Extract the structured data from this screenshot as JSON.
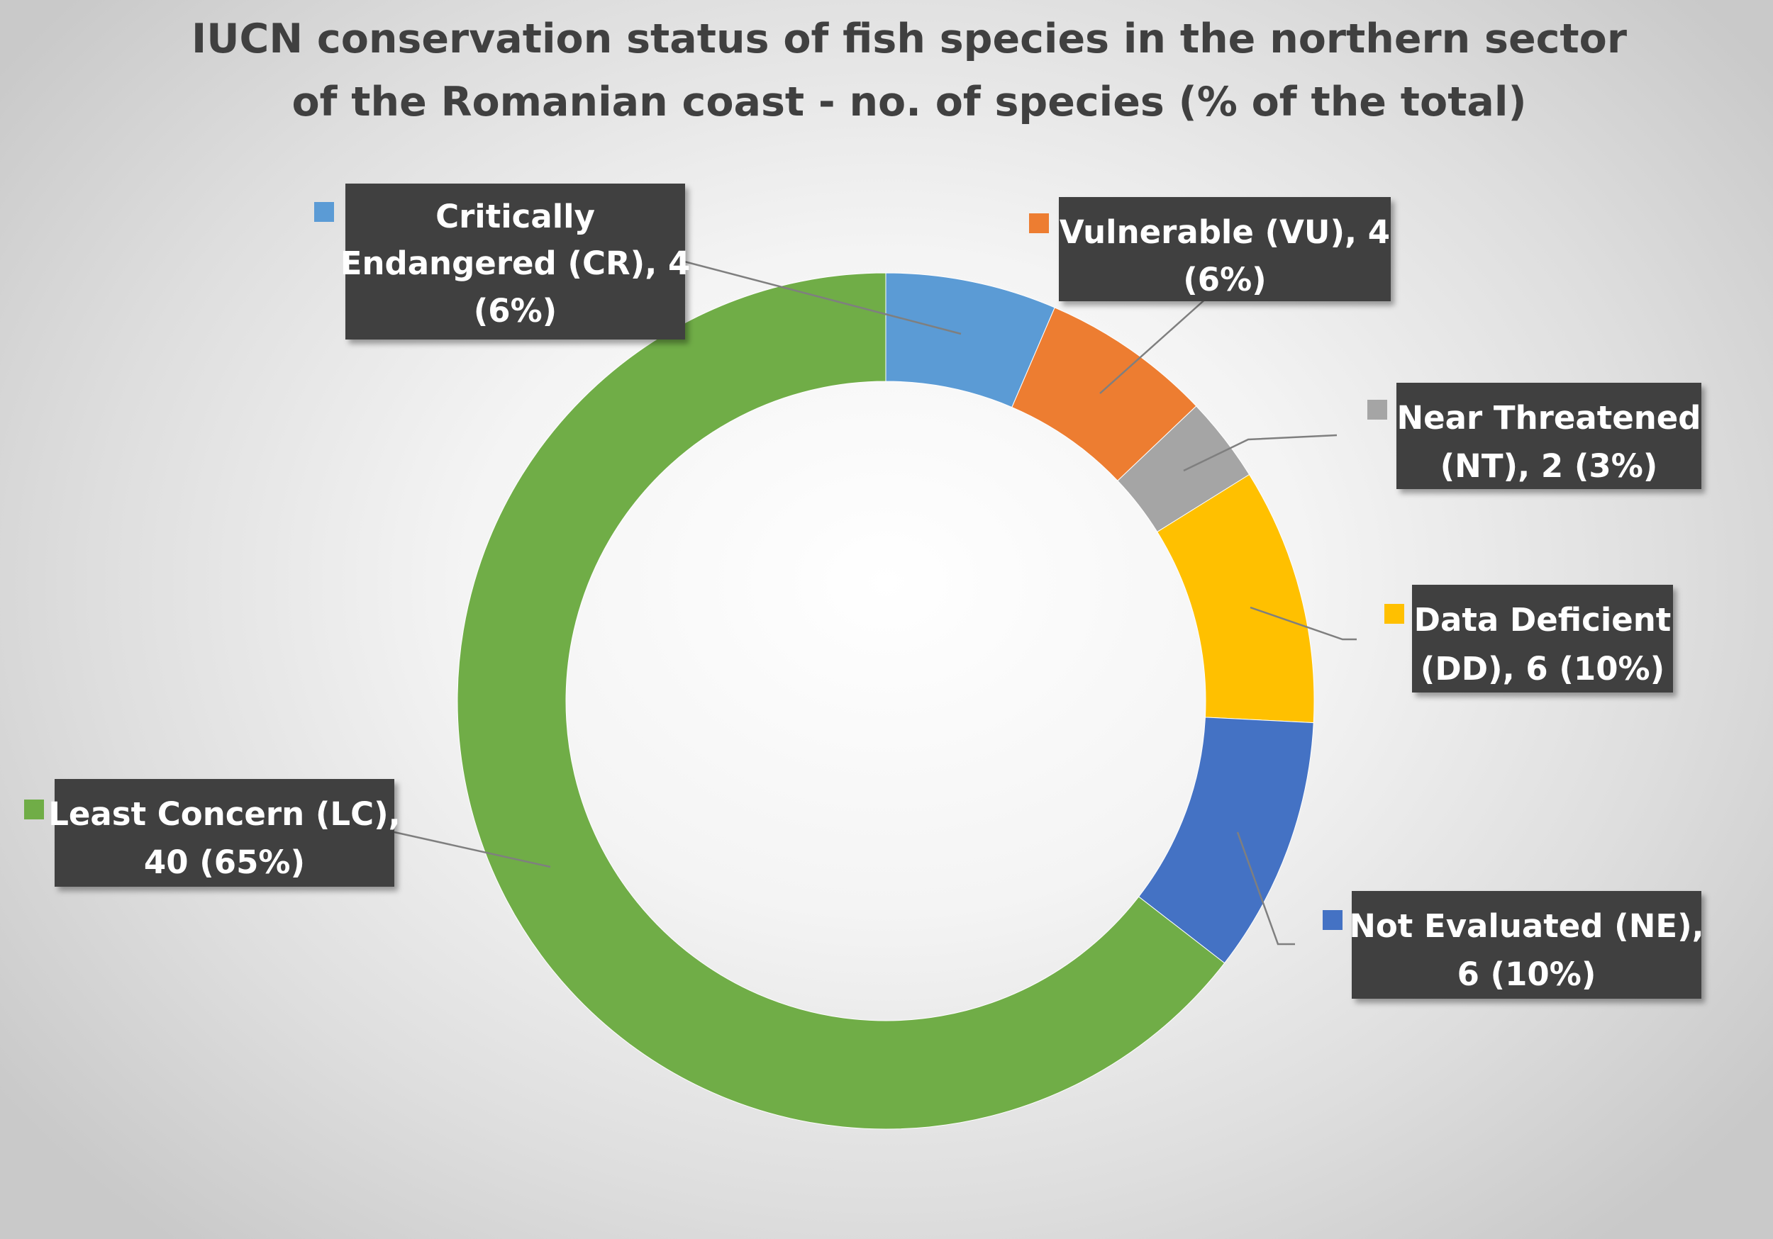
{
  "chart_data": {
    "type": "pie",
    "variant": "doughnut",
    "title_lines": [
      "IUCN conservation status of fish species in the northern sector",
      "of the Romanian coast - no. of species (% of the total)"
    ],
    "label_background": "#404040",
    "slices": [
      {
        "name": "Critically Endangered (CR)",
        "value": 4,
        "percent_label": "6%",
        "color": "#5B9BD5",
        "label_lines": [
          "Critically",
          "Endangered (CR), 4",
          "(6%)"
        ]
      },
      {
        "name": "Vulnerable (VU)",
        "value": 4,
        "percent_label": "6%",
        "color": "#ED7D31",
        "label_lines": [
          "Vulnerable (VU), 4",
          "(6%)"
        ]
      },
      {
        "name": "Near Threatened (NT)",
        "value": 2,
        "percent_label": "3%",
        "color": "#A5A5A5",
        "label_lines": [
          "Near Threatened",
          "(NT), 2 (3%)"
        ]
      },
      {
        "name": "Data Deficient (DD)",
        "value": 6,
        "percent_label": "10%",
        "color": "#FFC000",
        "label_lines": [
          "Data Deficient",
          "(DD), 6 (10%)"
        ]
      },
      {
        "name": "Not Evaluated (NE)",
        "value": 6,
        "percent_label": "10%",
        "color": "#4472C4",
        "label_lines": [
          "Not Evaluated (NE),",
          "6 (10%)"
        ]
      },
      {
        "name": "Least Concern (LC)",
        "value": 40,
        "percent_label": "65%",
        "color": "#70AD47",
        "label_lines": [
          "Least Concern (LC),",
          "40 (65%)"
        ]
      }
    ]
  }
}
